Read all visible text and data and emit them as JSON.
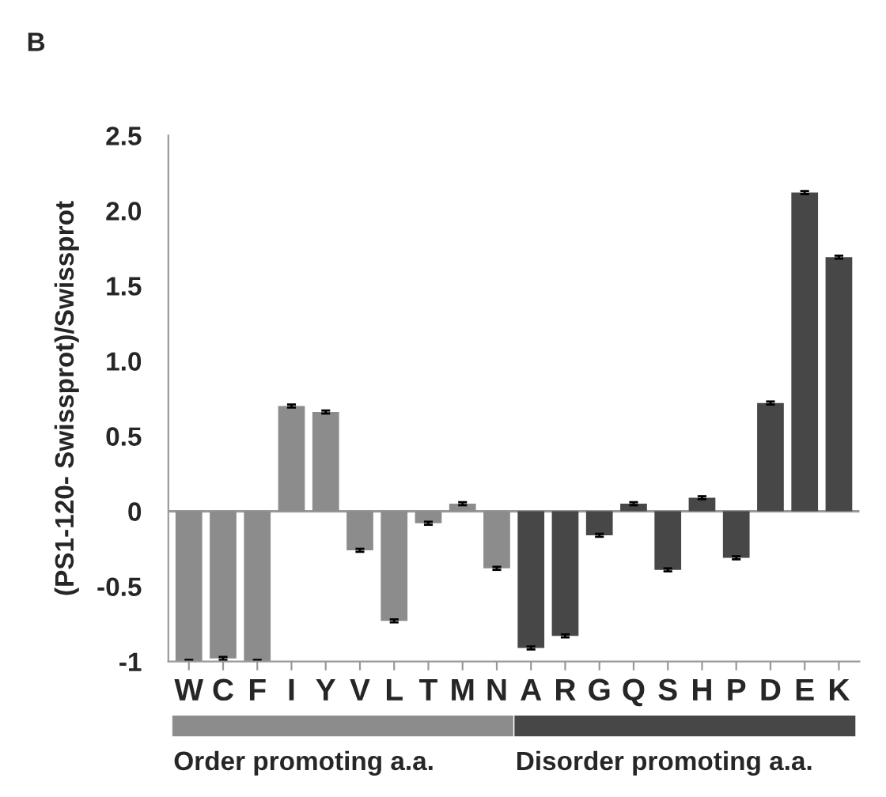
{
  "chart_data": {
    "type": "bar",
    "title": "B",
    "ylabel": "(PS1-120- Swissprot)/Swissprot",
    "categories": [
      "W",
      "C",
      "F",
      "I",
      "Y",
      "V",
      "L",
      "T",
      "M",
      "N",
      "A",
      "R",
      "G",
      "Q",
      "S",
      "H",
      "P",
      "D",
      "E",
      "K"
    ],
    "values": [
      -1.0,
      -0.98,
      -1.0,
      0.7,
      0.66,
      -0.26,
      -0.73,
      -0.08,
      0.05,
      -0.38,
      -0.91,
      -0.83,
      -0.16,
      0.05,
      -0.39,
      0.09,
      -0.31,
      0.72,
      2.12,
      1.69
    ],
    "errors": [
      0.01,
      0.01,
      0.01,
      0.01,
      0.01,
      0.01,
      0.01,
      0.01,
      0.01,
      0.01,
      0.01,
      0.01,
      0.01,
      0.01,
      0.01,
      0.01,
      0.01,
      0.01,
      0.01,
      0.01
    ],
    "colors": [
      "#8c8c8c",
      "#8c8c8c",
      "#8c8c8c",
      "#8c8c8c",
      "#8c8c8c",
      "#8c8c8c",
      "#8c8c8c",
      "#8c8c8c",
      "#8c8c8c",
      "#8c8c8c",
      "#474747",
      "#474747",
      "#474747",
      "#474747",
      "#474747",
      "#474747",
      "#474747",
      "#474747",
      "#474747",
      "#474747"
    ],
    "ylim": [
      -1,
      2.5
    ],
    "yticks": [
      {
        "value": -1,
        "label": "-1"
      },
      {
        "value": -0.5,
        "label": "-0.5"
      },
      0,
      {
        "value": 0.5,
        "label": "0.5"
      },
      {
        "value": 1.0,
        "label": "1.0"
      },
      {
        "value": 1.5,
        "label": "1.5"
      },
      {
        "value": 2.0,
        "label": "2.0"
      },
      {
        "value": 2.5,
        "label": "2.5"
      }
    ],
    "ref_lines": [
      {
        "axis": "y",
        "value": 0,
        "color": "#999999"
      }
    ],
    "annotations": [
      "Order promoting a.a.",
      "Disorder promoting a.a."
    ],
    "grid": false
  }
}
